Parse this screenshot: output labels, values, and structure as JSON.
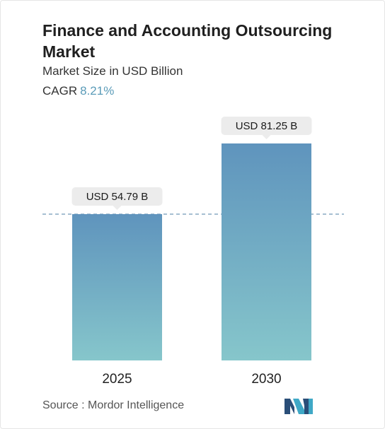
{
  "header": {
    "title": "Finance and Accounting Outsourcing Market",
    "subtitle": "Market Size in USD Billion",
    "cagr_label": "CAGR",
    "cagr_value": "8.21%"
  },
  "chart_data": {
    "type": "bar",
    "categories": [
      "2025",
      "2030"
    ],
    "values": [
      54.79,
      81.25
    ],
    "value_labels": [
      "USD 54.79 B",
      "USD 81.25 B"
    ],
    "ylim": [
      0,
      81.25
    ],
    "grid": false,
    "reference_line": "dashed line at the 2025 value",
    "colors": {
      "bar_top": "#5f94bd",
      "bar_bottom": "#86c6cb",
      "callout": "#ececec",
      "dashed_line": "#4d7fa6"
    }
  },
  "footer": {
    "source": "Source :  Mordor Intelligence",
    "logo": "mordor-intelligence-logo"
  }
}
